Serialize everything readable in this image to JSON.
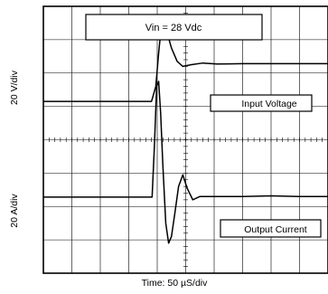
{
  "chart_data": {
    "type": "line",
    "title": "",
    "xlabel": "Time: 50 µS/div",
    "ylabel_top": "20 V/div",
    "ylabel_bottom": "20 A/div",
    "grid": true,
    "divisions": {
      "x": 10,
      "y": 8
    },
    "annotations": {
      "vin_label": "Vin = 28 Vdc",
      "input_label": "Input Voltage",
      "output_label": "Output Current"
    },
    "xlim": [
      0,
      10
    ],
    "ylim": [
      0,
      8
    ],
    "series": [
      {
        "name": "Input Voltage",
        "x": [
          0,
          1,
          2,
          3,
          3.8,
          3.95,
          4.05,
          4.15,
          4.25,
          4.35,
          4.5,
          4.7,
          4.9,
          5.2,
          5.6,
          6.1,
          7,
          8,
          9,
          10
        ],
        "y": [
          5.15,
          5.15,
          5.15,
          5.15,
          5.15,
          5.6,
          6.6,
          7.45,
          7.55,
          7.2,
          6.75,
          6.35,
          6.2,
          6.25,
          6.3,
          6.27,
          6.28,
          6.28,
          6.28,
          6.28
        ]
      },
      {
        "name": "Output Current",
        "x": [
          0,
          1,
          2,
          3,
          3.82,
          3.9,
          3.98,
          4.05,
          4.12,
          4.2,
          4.3,
          4.4,
          4.5,
          4.62,
          4.75,
          4.9,
          5.05,
          5.25,
          5.5,
          6,
          7,
          8,
          9,
          10
        ],
        "y": [
          2.28,
          2.28,
          2.28,
          2.28,
          2.28,
          3.8,
          5.6,
          5.75,
          4.8,
          3.2,
          1.5,
          0.9,
          1.1,
          1.8,
          2.6,
          2.95,
          2.55,
          2.2,
          2.3,
          2.3,
          2.3,
          2.32,
          2.3,
          2.3
        ]
      }
    ]
  }
}
